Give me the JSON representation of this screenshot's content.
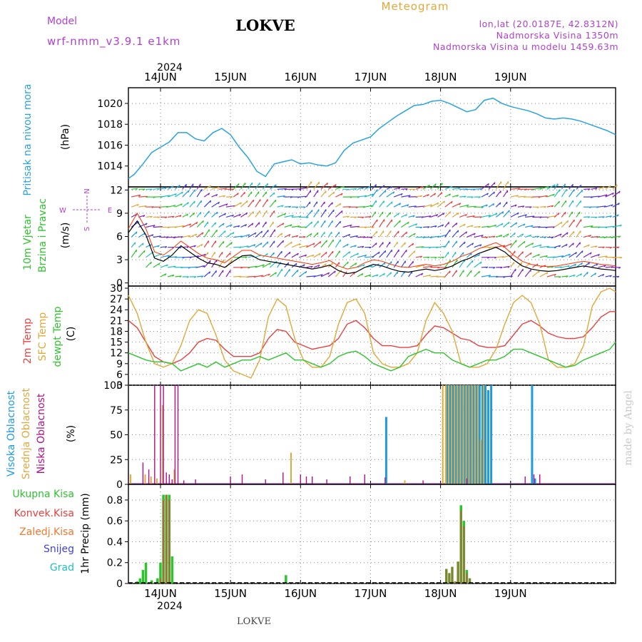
{
  "header": {
    "model_label": "Model",
    "model_name": "wrf-nmm_v3.9.1 e1km",
    "station": "LOKVE",
    "product": "Meteogram",
    "coords": "lon,lat (20.0187E, 42.8312N)",
    "elevation": "Nadmorska Visina 1350m",
    "model_elevation": "Nadmorska Visina u modelu 1459.63m",
    "watermark": "made by Angel",
    "footer_station": "LOKVE"
  },
  "colors": {
    "pressure": "#29a3e0",
    "t2m": "#e84040",
    "sfc": "#e0a838",
    "dewpt": "#2ec42e",
    "high_cloud": "#1e9be0",
    "mid_cloud": "#e0a838",
    "low_cloud": "#b0108a",
    "total_precip": "#2ec42e",
    "conv_precip": "#e84040",
    "frozen_precip": "#f07830",
    "snow": "#4040e0",
    "graupel": "#20c0c0",
    "wind_speed": "#000000",
    "wind_gust": "#ff3300",
    "compass": "#b040d0"
  },
  "axes": {
    "year_top": "2024",
    "year_bottom": "2024",
    "day_labels": [
      "14JUN",
      "15JUN",
      "16JUN",
      "17JUN",
      "18JUN",
      "19JUN"
    ]
  },
  "panels": {
    "pressure": {
      "label": "Pritisak na nivou mora",
      "unit": "(hPa)"
    },
    "wind": {
      "label1": "10m Vjetar",
      "label2": "Brzina i Pravac",
      "unit": "(m/s)",
      "compass": {
        "n": "N",
        "s": "S",
        "e": "E",
        "w": "W"
      }
    },
    "temp": {
      "label1": "2m Temp",
      "label2": "SFC Temp",
      "label3": "dewpt Temp",
      "unit": "(C)"
    },
    "cloud": {
      "label1": "Visoka Oblacnost",
      "label2": "Srednja Oblacnost",
      "label3": "Niska Oblacnost",
      "unit": "(%)"
    },
    "precip": {
      "labels": [
        "Ukupna Kisa",
        "Konvek.Kisa",
        "Zaledj.Kisa",
        "Snijeg",
        "Grad"
      ],
      "unit": "1hr Precip (mm)"
    }
  },
  "chart_data": [
    {
      "type": "line",
      "name": "pressure",
      "x_unit": "hours",
      "xlim": [
        -11,
        156
      ],
      "ylim": [
        1012,
        1021.5
      ],
      "yticks": [
        1014,
        1016,
        1018,
        1020
      ],
      "grid": true,
      "x": [
        -11,
        -9,
        -6,
        -3,
        0,
        3,
        6,
        9,
        12,
        15,
        18,
        21,
        24,
        27,
        30,
        33,
        36,
        39,
        42,
        45,
        48,
        51,
        54,
        57,
        60,
        63,
        66,
        69,
        72,
        75,
        78,
        81,
        84,
        87,
        90,
        93,
        96,
        99,
        102,
        105,
        108,
        111,
        114,
        117,
        120,
        123,
        126,
        129,
        132,
        135,
        138,
        141,
        144,
        147,
        150,
        153,
        156
      ],
      "y": [
        1012.8,
        1013.2,
        1014.2,
        1015.3,
        1015.8,
        1016.3,
        1017.2,
        1017.2,
        1016.6,
        1016.4,
        1017.2,
        1017.6,
        1017.0,
        1015.8,
        1014.8,
        1013.5,
        1013.0,
        1014.2,
        1014.4,
        1014.6,
        1014.2,
        1014.3,
        1014.1,
        1014.0,
        1014.3,
        1015.5,
        1016.2,
        1016.5,
        1016.8,
        1017.6,
        1018.2,
        1018.8,
        1019.3,
        1019.8,
        1019.9,
        1020.2,
        1020.3,
        1020.0,
        1019.6,
        1019.2,
        1019.4,
        1020.3,
        1020.5,
        1020.0,
        1019.7,
        1019.5,
        1019.3,
        1019.0,
        1018.6,
        1018.5,
        1018.6,
        1018.5,
        1018.3,
        1018.0,
        1017.7,
        1017.4,
        1017.0
      ]
    },
    {
      "type": "line",
      "name": "wind",
      "ylim": [
        -0.4,
        12.4
      ],
      "yticks": [
        0,
        3,
        6,
        9,
        12
      ],
      "grid": true,
      "x": [
        -11,
        -8,
        -5,
        -2,
        1,
        4,
        7,
        10,
        13,
        16,
        19,
        22,
        25,
        28,
        31,
        34,
        37,
        40,
        43,
        46,
        49,
        52,
        55,
        58,
        61,
        64,
        67,
        70,
        73,
        76,
        79,
        82,
        85,
        88,
        91,
        94,
        97,
        100,
        103,
        106,
        109,
        112,
        115,
        118,
        121,
        124,
        127,
        130,
        133,
        136,
        139,
        142,
        145,
        148,
        151,
        154,
        156
      ],
      "y": [
        6.5,
        8.0,
        6.2,
        3.2,
        2.8,
        3.6,
        4.8,
        4.0,
        3.2,
        2.6,
        2.4,
        2.0,
        2.8,
        3.5,
        3.6,
        3.0,
        2.8,
        2.6,
        2.4,
        2.2,
        2.0,
        1.8,
        2.0,
        2.3,
        1.6,
        1.2,
        1.4,
        2.0,
        2.4,
        2.2,
        1.8,
        1.5,
        1.4,
        1.6,
        1.8,
        1.6,
        1.8,
        2.2,
        2.8,
        3.2,
        3.8,
        4.2,
        4.6,
        4.0,
        3.0,
        2.2,
        1.8,
        1.6,
        1.5,
        1.6,
        1.8,
        2.0,
        2.2,
        2.0,
        1.8,
        1.7,
        1.6
      ],
      "gust": [
        7.0,
        9.0,
        7.0,
        4.0,
        3.6,
        4.4,
        5.4,
        4.6,
        3.8,
        3.2,
        3.0,
        2.6,
        3.4,
        4.2,
        4.2,
        3.6,
        3.4,
        3.2,
        3.0,
        2.8,
        2.6,
        2.4,
        2.6,
        2.9,
        2.2,
        1.8,
        2.0,
        2.6,
        3.0,
        2.8,
        2.4,
        2.1,
        2.0,
        2.2,
        2.4,
        2.2,
        2.4,
        2.8,
        3.4,
        3.8,
        4.4,
        4.8,
        5.2,
        4.6,
        3.6,
        2.8,
        2.4,
        2.2,
        2.1,
        2.2,
        2.4,
        2.6,
        2.8,
        2.6,
        2.4,
        2.3,
        2.2
      ]
    },
    {
      "type": "line",
      "name": "temperature",
      "ylim": [
        3,
        30.6
      ],
      "yticks": [
        3,
        6,
        9,
        12,
        15,
        18,
        21,
        24,
        27,
        30
      ],
      "grid": true,
      "series": [
        {
          "name": "2m Temp",
          "x": [
            -11,
            -8,
            -5,
            -2,
            1,
            4,
            7,
            10,
            13,
            16,
            19,
            22,
            25,
            28,
            31,
            34,
            37,
            40,
            43,
            46,
            49,
            52,
            55,
            58,
            61,
            64,
            67,
            70,
            73,
            76,
            79,
            82,
            85,
            88,
            91,
            94,
            97,
            100,
            103,
            106,
            109,
            112,
            115,
            118,
            121,
            124,
            127,
            130,
            133,
            136,
            139,
            142,
            145,
            148,
            151,
            154,
            156
          ],
          "y": [
            21,
            19,
            15,
            11,
            9.5,
            9,
            10,
            12,
            15,
            16,
            15.5,
            13,
            11,
            11,
            11,
            12,
            16,
            18.5,
            18,
            15,
            14,
            13,
            13.5,
            14,
            16,
            20,
            21,
            19,
            16,
            14,
            14,
            13.5,
            13.5,
            14,
            17,
            19.5,
            19,
            17.5,
            16,
            15.5,
            14,
            13.5,
            13.5,
            14,
            17,
            20,
            21,
            19.5,
            17.5,
            16.5,
            16,
            16,
            16.5,
            19,
            22,
            23.5,
            23.5
          ]
        },
        {
          "name": "SFC Temp",
          "x": [
            -11,
            -8,
            -5,
            -2,
            1,
            4,
            7,
            10,
            13,
            16,
            19,
            22,
            25,
            28,
            31,
            34,
            37,
            40,
            43,
            46,
            49,
            52,
            55,
            58,
            61,
            64,
            67,
            70,
            73,
            76,
            79,
            82,
            85,
            88,
            91,
            94,
            97,
            100,
            103,
            106,
            109,
            112,
            115,
            118,
            121,
            124,
            127,
            130,
            133,
            136,
            139,
            142,
            145,
            148,
            151,
            154,
            156
          ],
          "y": [
            28,
            23,
            15,
            9,
            8,
            9,
            14,
            21,
            24,
            23,
            17,
            10,
            7,
            6,
            5,
            10,
            22,
            27,
            25,
            16,
            10,
            8,
            8,
            11,
            20,
            26,
            27,
            23,
            12,
            9,
            8,
            8,
            9,
            12,
            21,
            26,
            23,
            18,
            9,
            8,
            8,
            9,
            13,
            20,
            26,
            28,
            26,
            20,
            10,
            8,
            8,
            9,
            14,
            25,
            29,
            30,
            29
          ]
        },
        {
          "name": "dewpt Temp",
          "x": [
            -11,
            -8,
            -5,
            -2,
            1,
            4,
            7,
            10,
            13,
            16,
            19,
            22,
            25,
            28,
            31,
            34,
            37,
            40,
            43,
            46,
            49,
            52,
            55,
            58,
            61,
            64,
            67,
            70,
            73,
            76,
            79,
            82,
            85,
            88,
            91,
            94,
            97,
            100,
            103,
            106,
            109,
            112,
            115,
            118,
            121,
            124,
            127,
            130,
            133,
            136,
            139,
            142,
            145,
            148,
            151,
            154,
            156
          ],
          "y": [
            12,
            11,
            10,
            9.5,
            9.5,
            9,
            7,
            8,
            9,
            8,
            9.5,
            8,
            9,
            10,
            10,
            11,
            10,
            11,
            12,
            10,
            10,
            9,
            8,
            9,
            11,
            12,
            12.5,
            11,
            9,
            8,
            7,
            8,
            11,
            12,
            13,
            12,
            12,
            10,
            9,
            8,
            9,
            10,
            10,
            11,
            13,
            13,
            12,
            11,
            10,
            9,
            8,
            8.5,
            10,
            11,
            12,
            13,
            15
          ]
        }
      ]
    },
    {
      "type": "bar",
      "name": "cloud",
      "ylim": [
        0,
        100
      ],
      "yticks": [
        0,
        25,
        50,
        75,
        100
      ],
      "grid": true,
      "series": [
        {
          "name": "Visoka Oblacnost",
          "x": [
            77,
            98,
            99,
            100,
            101,
            102,
            103,
            104,
            105,
            106,
            107,
            108,
            109,
            110,
            111,
            112,
            113,
            127,
            128
          ],
          "y": [
            68,
            100,
            100,
            100,
            100,
            100,
            100,
            100,
            100,
            100,
            100,
            100,
            100,
            100,
            100,
            95,
            100,
            100,
            6
          ]
        },
        {
          "name": "Srednja Oblacnost",
          "x": [
            -10,
            -5,
            -3,
            -1,
            1,
            5,
            45,
            84,
            97,
            98,
            99,
            100,
            101,
            102,
            103,
            104,
            105,
            106,
            107,
            108,
            109,
            110,
            111
          ],
          "y": [
            10,
            10,
            8,
            6,
            80,
            15,
            32,
            4,
            100,
            100,
            100,
            100,
            100,
            100,
            100,
            100,
            100,
            100,
            100,
            100,
            100,
            45,
            100
          ]
        },
        {
          "name": "Niska Oblacnost",
          "x": [
            -6,
            -4,
            -2,
            0,
            1,
            2,
            3,
            4,
            5,
            6,
            8,
            12,
            24,
            28,
            36,
            42,
            48,
            50,
            52,
            57,
            65,
            70,
            77,
            90,
            105,
            125,
            128,
            130
          ],
          "y": [
            22,
            15,
            100,
            100,
            100,
            12,
            10,
            5,
            100,
            100,
            4,
            5,
            8,
            10,
            5,
            12,
            10,
            8,
            8,
            5,
            8,
            10,
            7,
            4,
            6,
            8,
            10,
            10
          ]
        }
      ]
    },
    {
      "type": "bar",
      "name": "precip",
      "ylim": [
        0,
        0.95
      ],
      "yticks": [
        0,
        0.2,
        0.4,
        0.6,
        0.8
      ],
      "grid": true,
      "series": [
        {
          "name": "Ukupna Kisa",
          "x": [
            -8,
            -7,
            -6,
            -5,
            -3,
            -1,
            0,
            1,
            2,
            3,
            4,
            43,
            98,
            99,
            100,
            101,
            102,
            103,
            104,
            105,
            106
          ],
          "y": [
            0.02,
            0.05,
            0.13,
            0.2,
            0.03,
            0.05,
            0.2,
            0.85,
            0.85,
            0.85,
            0.26,
            0.08,
            0.14,
            0.1,
            0.16,
            0.02,
            0.21,
            0.75,
            0.6,
            0.13,
            0.05
          ]
        },
        {
          "name": "Konvek.Kisa",
          "x": [
            0,
            1,
            2,
            3,
            98,
            99,
            100,
            101,
            102,
            103,
            104,
            105,
            106
          ],
          "y": [
            0.05,
            0.8,
            0.85,
            0.8,
            0.14,
            0.1,
            0.16,
            0.02,
            0.21,
            0.7,
            0.55,
            0.1,
            0.05
          ]
        },
        {
          "name": "Zaledj.Kisa",
          "x": [],
          "y": []
        },
        {
          "name": "Snijeg",
          "x": [],
          "y": []
        },
        {
          "name": "Grad",
          "x": [],
          "y": []
        }
      ]
    }
  ]
}
